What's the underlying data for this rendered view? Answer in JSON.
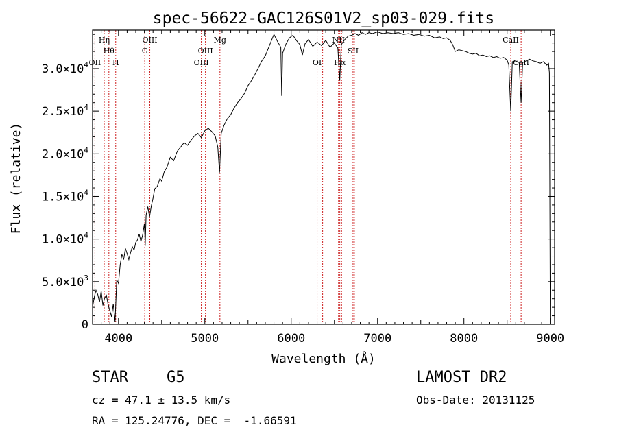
{
  "chart_data": {
    "type": "line",
    "title": "spec-56622-GAC126S01V2_sp03-029.fits",
    "xlabel": "Wavelength (Å)",
    "ylabel": "Flux (relative)",
    "xlim": [
      3700,
      9050
    ],
    "ylim": [
      0,
      34500
    ],
    "x_ticks": [
      4000,
      5000,
      6000,
      7000,
      8000,
      9000
    ],
    "x_tick_labels": [
      "4000",
      "5000",
      "6000",
      "7000",
      "8000",
      "9000"
    ],
    "y_ticks": [
      0,
      5000,
      10000,
      15000,
      20000,
      25000,
      30000
    ],
    "y_tick_labels": [
      {
        "mant": "0",
        "exp": ""
      },
      {
        "mant": "5.0×10",
        "exp": "3"
      },
      {
        "mant": "1.0×10",
        "exp": "4"
      },
      {
        "mant": "1.5×10",
        "exp": "4"
      },
      {
        "mant": "2.0×10",
        "exp": "4"
      },
      {
        "mant": "2.5×10",
        "exp": "4"
      },
      {
        "mant": "3.0×10",
        "exp": "4"
      }
    ],
    "series": [
      {
        "color": "#000000",
        "points": [
          [
            3700,
            2000
          ],
          [
            3720,
            3200
          ],
          [
            3740,
            4000
          ],
          [
            3760,
            3500
          ],
          [
            3780,
            2600
          ],
          [
            3800,
            3900
          ],
          [
            3820,
            2200
          ],
          [
            3840,
            3100
          ],
          [
            3860,
            3400
          ],
          [
            3880,
            2300
          ],
          [
            3900,
            1600
          ],
          [
            3920,
            900
          ],
          [
            3940,
            2400
          ],
          [
            3960,
            300
          ],
          [
            3980,
            5200
          ],
          [
            4000,
            4800
          ],
          [
            4020,
            7000
          ],
          [
            4040,
            8200
          ],
          [
            4060,
            7600
          ],
          [
            4080,
            8900
          ],
          [
            4100,
            8300
          ],
          [
            4120,
            7600
          ],
          [
            4140,
            8400
          ],
          [
            4160,
            9100
          ],
          [
            4180,
            8700
          ],
          [
            4200,
            9600
          ],
          [
            4220,
            9900
          ],
          [
            4240,
            10600
          ],
          [
            4260,
            9700
          ],
          [
            4280,
            10500
          ],
          [
            4300,
            11800
          ],
          [
            4310,
            9200
          ],
          [
            4320,
            12800
          ],
          [
            4340,
            13800
          ],
          [
            4360,
            12600
          ],
          [
            4380,
            13900
          ],
          [
            4400,
            14800
          ],
          [
            4420,
            15900
          ],
          [
            4450,
            16200
          ],
          [
            4480,
            17100
          ],
          [
            4500,
            16800
          ],
          [
            4530,
            17900
          ],
          [
            4560,
            18400
          ],
          [
            4600,
            19600
          ],
          [
            4640,
            19200
          ],
          [
            4680,
            20300
          ],
          [
            4720,
            20800
          ],
          [
            4760,
            21300
          ],
          [
            4800,
            21000
          ],
          [
            4840,
            21600
          ],
          [
            4880,
            22100
          ],
          [
            4920,
            22400
          ],
          [
            4960,
            21900
          ],
          [
            5000,
            22700
          ],
          [
            5040,
            23000
          ],
          [
            5080,
            22600
          ],
          [
            5120,
            22100
          ],
          [
            5150,
            20800
          ],
          [
            5170,
            17800
          ],
          [
            5190,
            22400
          ],
          [
            5220,
            23300
          ],
          [
            5260,
            24100
          ],
          [
            5300,
            24600
          ],
          [
            5340,
            25400
          ],
          [
            5380,
            26000
          ],
          [
            5420,
            26500
          ],
          [
            5460,
            27100
          ],
          [
            5500,
            28000
          ],
          [
            5540,
            28600
          ],
          [
            5580,
            29300
          ],
          [
            5620,
            30100
          ],
          [
            5660,
            30900
          ],
          [
            5700,
            31500
          ],
          [
            5740,
            32500
          ],
          [
            5780,
            33500
          ],
          [
            5800,
            34000
          ],
          [
            5840,
            33200
          ],
          [
            5880,
            32500
          ],
          [
            5890,
            26800
          ],
          [
            5900,
            31800
          ],
          [
            5940,
            32900
          ],
          [
            5980,
            33600
          ],
          [
            6020,
            33900
          ],
          [
            6060,
            33300
          ],
          [
            6100,
            32800
          ],
          [
            6130,
            31600
          ],
          [
            6160,
            32900
          ],
          [
            6200,
            33400
          ],
          [
            6250,
            32600
          ],
          [
            6300,
            33100
          ],
          [
            6350,
            32700
          ],
          [
            6400,
            33300
          ],
          [
            6450,
            32500
          ],
          [
            6500,
            33000
          ],
          [
            6540,
            32400
          ],
          [
            6562,
            28600
          ],
          [
            6580,
            32800
          ],
          [
            6620,
            33400
          ],
          [
            6660,
            33800
          ],
          [
            6700,
            33900
          ],
          [
            6740,
            34100
          ],
          [
            6780,
            33900
          ],
          [
            6820,
            34200
          ],
          [
            6860,
            34000
          ],
          [
            6900,
            34200
          ],
          [
            6940,
            34100
          ],
          [
            7000,
            34300
          ],
          [
            7060,
            34100
          ],
          [
            7120,
            34200
          ],
          [
            7180,
            34100
          ],
          [
            7240,
            34200
          ],
          [
            7300,
            34000
          ],
          [
            7360,
            34100
          ],
          [
            7420,
            33900
          ],
          [
            7480,
            34000
          ],
          [
            7540,
            33800
          ],
          [
            7600,
            33900
          ],
          [
            7660,
            33600
          ],
          [
            7720,
            33700
          ],
          [
            7760,
            33500
          ],
          [
            7800,
            33600
          ],
          [
            7840,
            33300
          ],
          [
            7870,
            32800
          ],
          [
            7900,
            32000
          ],
          [
            7940,
            32200
          ],
          [
            7980,
            32100
          ],
          [
            8020,
            32000
          ],
          [
            8060,
            31800
          ],
          [
            8100,
            31700
          ],
          [
            8140,
            31800
          ],
          [
            8180,
            31500
          ],
          [
            8220,
            31600
          ],
          [
            8260,
            31400
          ],
          [
            8300,
            31500
          ],
          [
            8340,
            31300
          ],
          [
            8380,
            31400
          ],
          [
            8420,
            31200
          ],
          [
            8460,
            31300
          ],
          [
            8500,
            31000
          ],
          [
            8520,
            30400
          ],
          [
            8542,
            25000
          ],
          [
            8560,
            30800
          ],
          [
            8600,
            30900
          ],
          [
            8640,
            30700
          ],
          [
            8662,
            26000
          ],
          [
            8680,
            30700
          ],
          [
            8720,
            30900
          ],
          [
            8760,
            31100
          ],
          [
            8800,
            30900
          ],
          [
            8840,
            30800
          ],
          [
            8880,
            30600
          ],
          [
            8920,
            30800
          ],
          [
            8960,
            30400
          ],
          [
            8980,
            30600
          ],
          [
            8990,
            29500
          ],
          [
            9000,
            0
          ]
        ]
      }
    ],
    "lines": [
      {
        "wl": 3727,
        "color": "#cc2020",
        "label": "OII",
        "row": 3
      },
      {
        "wl": 3835,
        "color": "#cc2020",
        "label": "Hη",
        "row": 1
      },
      {
        "wl": 3889,
        "color": "#cc2020",
        "label": "Hθ",
        "row": 2
      },
      {
        "wl": 3968,
        "color": "#cc2020",
        "label": "H",
        "row": 3
      },
      {
        "wl": 4304,
        "color": "#cc2020",
        "label": "G",
        "row": 2
      },
      {
        "wl": 4363,
        "color": "#cc2020",
        "label": "OIII",
        "row": 1
      },
      {
        "wl": 4959,
        "color": "#cc2020",
        "label": "OIII",
        "row": 3
      },
      {
        "wl": 5007,
        "color": "#cc2020",
        "label": "OIII",
        "row": 2
      },
      {
        "wl": 5175,
        "color": "#cc2020",
        "label": "Mg",
        "row": 1
      },
      {
        "wl": 6300,
        "color": "#cc2020",
        "label": "OI",
        "row": 3
      },
      {
        "wl": 6364,
        "color": "#cc2020",
        "label": "",
        "row": 0
      },
      {
        "wl": 6548,
        "color": "#cc2020",
        "label": "NII",
        "row": 1
      },
      {
        "wl": 6563,
        "color": "#cc2020",
        "label": "Hα",
        "row": 3
      },
      {
        "wl": 6583,
        "color": "#cc2020",
        "label": "",
        "row": 0
      },
      {
        "wl": 6716,
        "color": "#cc2020",
        "label": "SII",
        "row": 2
      },
      {
        "wl": 6731,
        "color": "#cc2020",
        "label": "",
        "row": 0
      },
      {
        "wl": 8542,
        "color": "#cc2020",
        "label": "CaII",
        "row": 1
      },
      {
        "wl": 8662,
        "color": "#cc2020",
        "label": "CaII",
        "row": 3
      }
    ]
  },
  "info": {
    "object_class": "STAR",
    "subclass": "G5",
    "survey": "LAMOST DR2",
    "cz": "cz = 47.1 ± 13.5 km/s",
    "obs_date": "Obs-Date: 20131125",
    "coords": "RA = 125.24776, DEC =  -1.66591"
  }
}
